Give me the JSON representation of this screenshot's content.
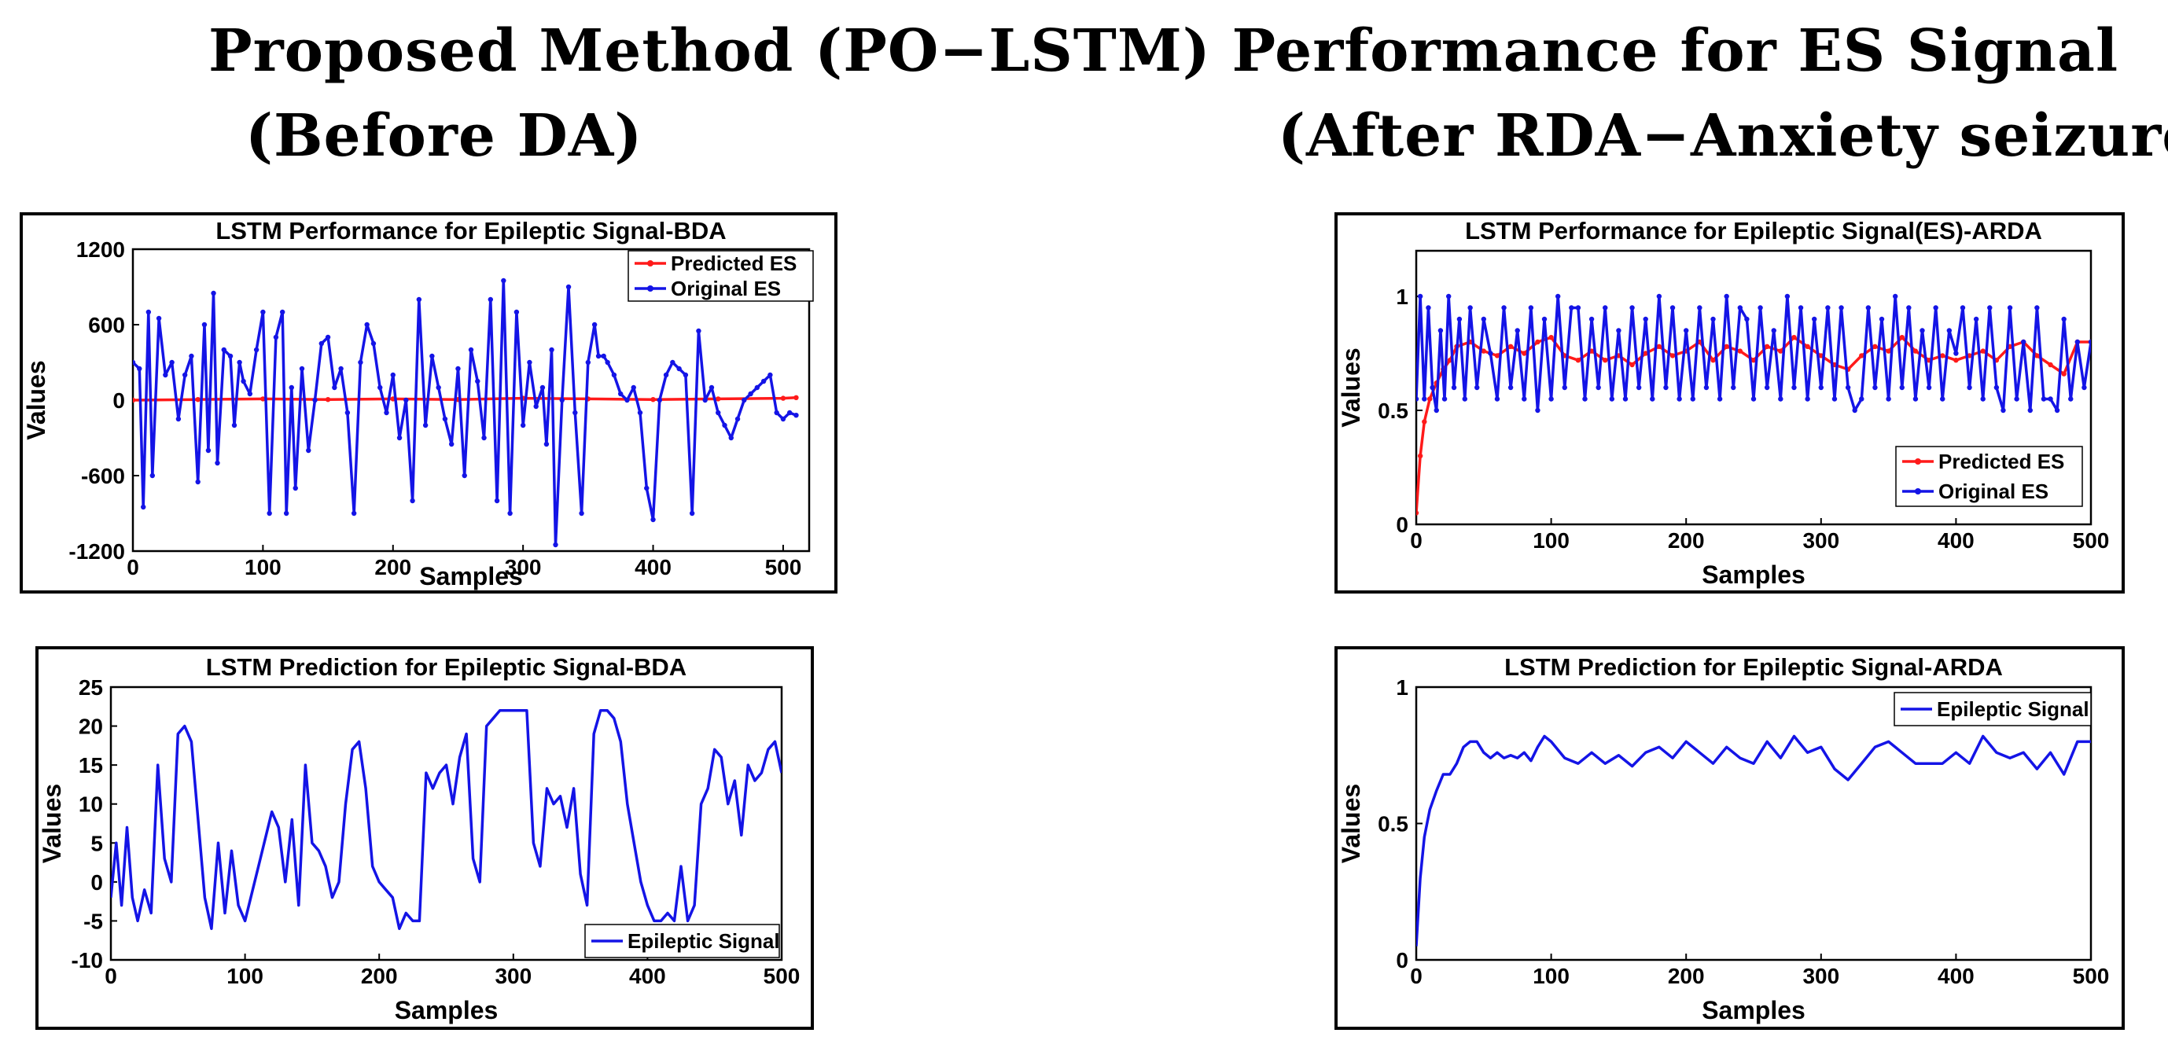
{
  "page": {
    "title": "Proposed Method (PO−LSTM) Performance for ES Signal",
    "left_subtitle": "(Before DA)",
    "right_subtitle": "(After RDA−Anxiety seizure)"
  },
  "colors": {
    "predicted": "#ff1a1a",
    "original": "#1414e6",
    "axis": "#000000"
  },
  "chart_data": [
    {
      "id": "perf-bda",
      "type": "line",
      "title": "LSTM Performance for Epileptic Signal-BDA",
      "xlabel": "Samples",
      "ylabel": "Values",
      "xlim": [
        0,
        520
      ],
      "ylim": [
        -1200,
        1200
      ],
      "xticks": [
        0,
        100,
        200,
        300,
        400,
        500
      ],
      "yticks": [
        -1200,
        -600,
        0,
        600,
        1200
      ],
      "legend": "top-right",
      "markers": true,
      "series": [
        {
          "name": "Predicted ES",
          "color": "#ff1a1a",
          "x": [
            0,
            50,
            100,
            150,
            200,
            250,
            300,
            350,
            400,
            450,
            500,
            510
          ],
          "y": [
            0,
            5,
            10,
            5,
            10,
            5,
            15,
            10,
            5,
            10,
            15,
            20
          ]
        },
        {
          "name": "Original ES",
          "color": "#1414e6",
          "x": [
            0,
            5,
            8,
            12,
            15,
            20,
            25,
            30,
            35,
            40,
            45,
            50,
            55,
            58,
            62,
            65,
            70,
            75,
            78,
            82,
            85,
            90,
            95,
            100,
            105,
            110,
            115,
            118,
            122,
            125,
            130,
            135,
            140,
            145,
            150,
            155,
            160,
            165,
            170,
            175,
            180,
            185,
            190,
            195,
            200,
            205,
            210,
            215,
            220,
            225,
            230,
            235,
            240,
            245,
            250,
            255,
            260,
            265,
            270,
            275,
            280,
            285,
            290,
            295,
            300,
            305,
            310,
            315,
            318,
            322,
            325,
            330,
            335,
            340,
            345,
            350,
            355,
            358,
            362,
            365,
            370,
            375,
            380,
            385,
            390,
            395,
            400,
            405,
            410,
            415,
            420,
            425,
            430,
            435,
            440,
            445,
            450,
            455,
            460,
            465,
            470,
            475,
            480,
            485,
            490,
            495,
            500,
            505,
            510
          ],
          "y": [
            300,
            250,
            -850,
            700,
            -600,
            650,
            200,
            300,
            -150,
            200,
            350,
            -650,
            600,
            -400,
            850,
            -500,
            400,
            350,
            -200,
            300,
            150,
            50,
            400,
            700,
            -900,
            500,
            700,
            -900,
            100,
            -700,
            250,
            -400,
            0,
            450,
            500,
            100,
            250,
            -100,
            -900,
            300,
            600,
            450,
            100,
            -100,
            200,
            -300,
            0,
            -800,
            800,
            -200,
            350,
            100,
            -150,
            -350,
            250,
            -600,
            400,
            150,
            -300,
            800,
            -800,
            950,
            -900,
            700,
            -200,
            300,
            -50,
            100,
            -350,
            400,
            -1150,
            0,
            900,
            -100,
            -900,
            300,
            600,
            350,
            350,
            300,
            200,
            50,
            0,
            100,
            -100,
            -700,
            -950,
            0,
            200,
            300,
            250,
            200,
            -900,
            550,
            0,
            100,
            -100,
            -200,
            -300,
            -150,
            0,
            50,
            100,
            150,
            200,
            -100,
            -150,
            -100,
            -120
          ]
        }
      ]
    },
    {
      "id": "perf-arda",
      "type": "line",
      "title": "LSTM Performance for Epileptic Signal(ES)-ARDA",
      "xlabel": "Samples",
      "ylabel": "Values",
      "xlim": [
        0,
        500
      ],
      "ylim": [
        0,
        1.2
      ],
      "xticks": [
        0,
        100,
        200,
        300,
        400,
        500
      ],
      "yticks": [
        0,
        0.5,
        1
      ],
      "legend": "bottom-right",
      "markers": true,
      "series": [
        {
          "name": "Predicted ES",
          "color": "#ff1a1a",
          "x": [
            0,
            3,
            6,
            10,
            15,
            20,
            25,
            30,
            40,
            50,
            60,
            70,
            80,
            90,
            100,
            110,
            120,
            130,
            140,
            150,
            160,
            170,
            180,
            190,
            200,
            210,
            220,
            230,
            240,
            250,
            260,
            270,
            280,
            290,
            300,
            310,
            320,
            330,
            340,
            350,
            360,
            370,
            380,
            390,
            400,
            410,
            420,
            430,
            440,
            450,
            460,
            470,
            480,
            490,
            500
          ],
          "y": [
            0.05,
            0.3,
            0.45,
            0.55,
            0.62,
            0.68,
            0.72,
            0.78,
            0.8,
            0.76,
            0.74,
            0.78,
            0.75,
            0.8,
            0.82,
            0.74,
            0.72,
            0.76,
            0.72,
            0.74,
            0.7,
            0.75,
            0.78,
            0.74,
            0.76,
            0.8,
            0.72,
            0.78,
            0.76,
            0.72,
            0.78,
            0.76,
            0.82,
            0.78,
            0.74,
            0.7,
            0.68,
            0.74,
            0.78,
            0.76,
            0.82,
            0.76,
            0.72,
            0.74,
            0.72,
            0.74,
            0.76,
            0.72,
            0.78,
            0.8,
            0.74,
            0.7,
            0.66,
            0.8,
            0.8
          ]
        },
        {
          "name": "Original ES",
          "color": "#1414e6",
          "x": [
            0,
            3,
            6,
            9,
            12,
            15,
            18,
            21,
            24,
            28,
            32,
            36,
            40,
            45,
            50,
            55,
            60,
            65,
            70,
            75,
            80,
            85,
            90,
            95,
            100,
            105,
            110,
            115,
            120,
            125,
            130,
            135,
            140,
            145,
            150,
            155,
            160,
            165,
            170,
            175,
            180,
            185,
            190,
            195,
            200,
            205,
            210,
            215,
            220,
            225,
            230,
            235,
            240,
            245,
            250,
            255,
            260,
            265,
            270,
            275,
            280,
            285,
            290,
            295,
            300,
            305,
            310,
            315,
            320,
            325,
            330,
            335,
            340,
            345,
            350,
            355,
            360,
            365,
            370,
            375,
            380,
            385,
            390,
            395,
            400,
            405,
            410,
            415,
            420,
            425,
            430,
            435,
            440,
            445,
            450,
            455,
            460,
            465,
            470,
            475,
            480,
            485,
            490,
            495,
            500
          ],
          "y": [
            0.55,
            1.0,
            0.55,
            0.95,
            0.6,
            0.5,
            0.85,
            0.55,
            1.0,
            0.6,
            0.9,
            0.55,
            0.95,
            0.6,
            0.9,
            0.75,
            0.55,
            0.95,
            0.6,
            0.85,
            0.55,
            0.95,
            0.5,
            0.9,
            0.55,
            1.0,
            0.6,
            0.95,
            0.95,
            0.55,
            0.9,
            0.6,
            0.95,
            0.55,
            0.85,
            0.55,
            0.95,
            0.6,
            0.9,
            0.55,
            1.0,
            0.6,
            0.95,
            0.55,
            0.85,
            0.55,
            0.95,
            0.6,
            0.9,
            0.55,
            1.0,
            0.6,
            0.95,
            0.9,
            0.55,
            0.95,
            0.6,
            0.85,
            0.55,
            1.0,
            0.6,
            0.95,
            0.55,
            0.9,
            0.6,
            0.95,
            0.55,
            0.95,
            0.6,
            0.5,
            0.55,
            0.95,
            0.6,
            0.9,
            0.55,
            1.0,
            0.6,
            0.95,
            0.55,
            0.85,
            0.6,
            0.95,
            0.55,
            0.85,
            0.75,
            0.95,
            0.6,
            0.9,
            0.55,
            0.95,
            0.6,
            0.5,
            0.95,
            0.55,
            0.8,
            0.5,
            0.95,
            0.55,
            0.55,
            0.5,
            0.9,
            0.55,
            0.8,
            0.6,
            0.8
          ]
        }
      ]
    },
    {
      "id": "pred-bda",
      "type": "line",
      "title": "LSTM Prediction for Epileptic Signal-BDA",
      "xlabel": "Samples",
      "ylabel": "Values",
      "xlim": [
        0,
        500
      ],
      "ylim": [
        -10,
        25
      ],
      "xticks": [
        0,
        100,
        200,
        300,
        400,
        500
      ],
      "yticks": [
        -10,
        -5,
        0,
        5,
        10,
        15,
        20,
        25
      ],
      "legend": "bottom-right",
      "markers": false,
      "series": [
        {
          "name": "Epileptic Signal",
          "color": "#1414e6",
          "x": [
            0,
            4,
            8,
            12,
            16,
            20,
            25,
            30,
            35,
            40,
            45,
            50,
            55,
            60,
            65,
            70,
            75,
            80,
            85,
            90,
            95,
            100,
            110,
            120,
            125,
            130,
            135,
            140,
            145,
            150,
            155,
            160,
            165,
            170,
            175,
            180,
            185,
            190,
            195,
            200,
            205,
            210,
            215,
            220,
            225,
            230,
            235,
            240,
            245,
            250,
            255,
            260,
            265,
            270,
            275,
            280,
            285,
            290,
            300,
            310,
            315,
            320,
            325,
            330,
            335,
            340,
            345,
            350,
            355,
            360,
            365,
            370,
            375,
            380,
            385,
            390,
            395,
            400,
            405,
            410,
            415,
            420,
            425,
            430,
            435,
            440,
            445,
            450,
            455,
            460,
            465,
            470,
            475,
            480,
            485,
            490,
            495,
            500
          ],
          "y": [
            -2,
            5,
            -3,
            7,
            -2,
            -5,
            -1,
            -4,
            15,
            3,
            0,
            19,
            20,
            18,
            8,
            -2,
            -6,
            5,
            -4,
            4,
            -3,
            -5,
            2,
            9,
            7,
            0,
            8,
            -3,
            15,
            5,
            4,
            2,
            -2,
            0,
            10,
            17,
            18,
            12,
            2,
            0,
            -1,
            -2,
            -6,
            -4,
            -5,
            -5,
            14,
            12,
            14,
            15,
            10,
            16,
            19,
            3,
            0,
            20,
            21,
            22,
            22,
            22,
            5,
            2,
            12,
            10,
            11,
            7,
            12,
            1,
            -3,
            19,
            22,
            22,
            21,
            18,
            10,
            5,
            0,
            -3,
            -5,
            -5,
            -4,
            -5,
            2,
            -5,
            -3,
            10,
            12,
            17,
            16,
            10,
            13,
            6,
            15,
            13,
            14,
            17,
            18,
            14
          ]
        }
      ]
    },
    {
      "id": "pred-arda",
      "type": "line",
      "title": "LSTM Prediction for Epileptic Signal-ARDA",
      "xlabel": "Samples",
      "ylabel": "Values",
      "xlim": [
        0,
        500
      ],
      "ylim": [
        0,
        1
      ],
      "xticks": [
        0,
        100,
        200,
        300,
        400,
        500
      ],
      "yticks": [
        0,
        0.5,
        1
      ],
      "legend": "top-right",
      "markers": false,
      "series": [
        {
          "name": "Epileptic Signal",
          "color": "#1414e6",
          "x": [
            0,
            3,
            6,
            10,
            15,
            20,
            25,
            30,
            35,
            40,
            45,
            50,
            55,
            60,
            65,
            70,
            75,
            80,
            85,
            90,
            95,
            100,
            110,
            120,
            130,
            140,
            150,
            160,
            170,
            180,
            190,
            200,
            210,
            220,
            230,
            240,
            250,
            260,
            270,
            280,
            290,
            300,
            310,
            320,
            330,
            340,
            350,
            360,
            370,
            380,
            390,
            400,
            410,
            420,
            430,
            440,
            450,
            460,
            470,
            480,
            490,
            500
          ],
          "y": [
            0.05,
            0.3,
            0.45,
            0.55,
            0.62,
            0.68,
            0.68,
            0.72,
            0.78,
            0.8,
            0.8,
            0.76,
            0.74,
            0.76,
            0.74,
            0.75,
            0.74,
            0.76,
            0.73,
            0.78,
            0.82,
            0.8,
            0.74,
            0.72,
            0.76,
            0.72,
            0.75,
            0.71,
            0.76,
            0.78,
            0.74,
            0.8,
            0.76,
            0.72,
            0.78,
            0.74,
            0.72,
            0.8,
            0.74,
            0.82,
            0.76,
            0.78,
            0.7,
            0.66,
            0.72,
            0.78,
            0.8,
            0.76,
            0.72,
            0.72,
            0.72,
            0.76,
            0.72,
            0.82,
            0.76,
            0.74,
            0.76,
            0.7,
            0.76,
            0.68,
            0.8,
            0.8
          ]
        }
      ]
    }
  ]
}
